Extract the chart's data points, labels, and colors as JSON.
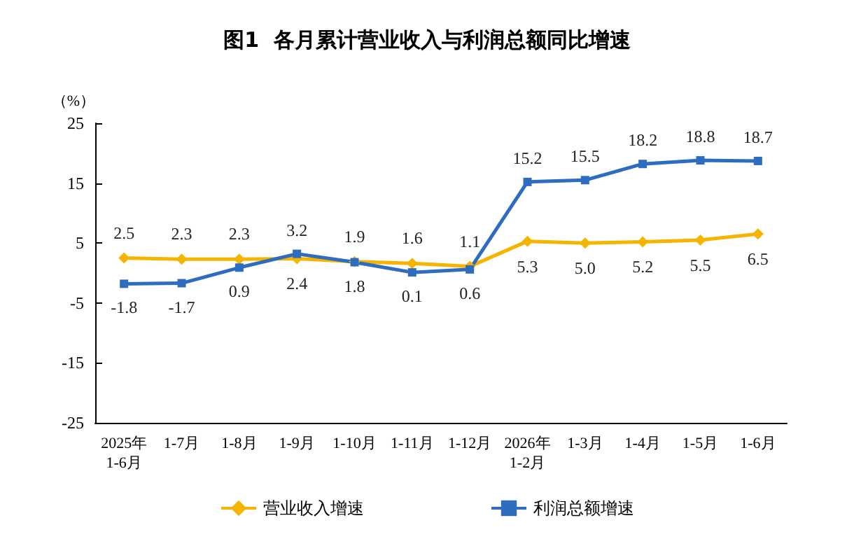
{
  "chart_data": {
    "type": "line",
    "title": "图1  各月累计营业收入与利润总额同比增速",
    "ylabel": "（%）",
    "categories": [
      "2025年\n1-6月",
      "1-7月",
      "1-8月",
      "1-9月",
      "1-10月",
      "1-11月",
      "1-12月",
      "2026年\n1-2月",
      "1-3月",
      "1-4月",
      "1-5月",
      "1-6月"
    ],
    "series": [
      {
        "name": "营业收入增速",
        "color": "#f5b400",
        "marker": "diamond",
        "values": [
          2.5,
          2.3,
          2.3,
          2.4,
          1.9,
          1.6,
          1.1,
          5.3,
          5.0,
          5.2,
          5.5,
          6.5
        ],
        "value_labels": [
          "2.5",
          "2.3",
          "2.3",
          "2.4",
          "1.9",
          "1.6",
          "1.1",
          "5.3",
          "5.0",
          "5.2",
          "5.5",
          "6.5"
        ]
      },
      {
        "name": "利润总额增速",
        "color": "#2e6cc0",
        "marker": "square",
        "values": [
          -1.8,
          -1.7,
          0.9,
          3.2,
          1.8,
          0.1,
          0.6,
          15.2,
          15.5,
          18.2,
          18.8,
          18.7
        ],
        "value_labels": [
          "-1.8",
          "-1.7",
          "0.9",
          "3.2",
          "1.8",
          "0.1",
          "0.6",
          "15.2",
          "15.5",
          "18.2",
          "18.8",
          "18.7"
        ]
      }
    ],
    "ylim": [
      -25,
      25
    ],
    "yticks": [
      -25,
      -15,
      -5,
      5,
      15,
      25
    ],
    "grid": false,
    "legend": "bottom",
    "line_style": "solid"
  }
}
